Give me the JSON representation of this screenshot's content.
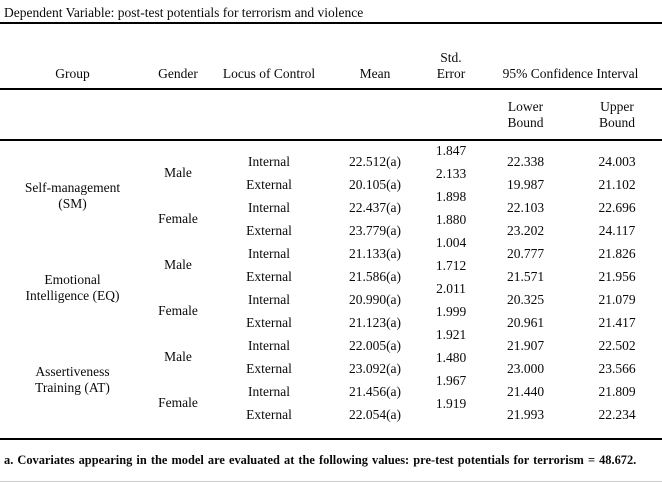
{
  "caption": "Dependent Variable: post-test potentials for terrorism and violence",
  "table": {
    "headers": {
      "group": "Group",
      "gender": "Gender",
      "locus": "Locus of Control",
      "mean": "Mean",
      "std_error": "Std.\nError",
      "ci": "95% Confidence Interval",
      "lower": "Lower\nBound",
      "upper": "Upper\nBound"
    },
    "groups": [
      {
        "name": "Self-management\n(SM)",
        "genders": [
          {
            "label": "Male",
            "rows": [
              {
                "locus": "Internal",
                "mean": "22.512(a)",
                "se": "1.847",
                "lower": "22.338",
                "upper": "24.003"
              },
              {
                "locus": "External",
                "mean": "20.105(a)",
                "se": "2.133",
                "lower": "19.987",
                "upper": "21.102"
              }
            ]
          },
          {
            "label": "Female",
            "rows": [
              {
                "locus": "Internal",
                "mean": "22.437(a)",
                "se": "1.898",
                "lower": "22.103",
                "upper": "22.696"
              },
              {
                "locus": "External",
                "mean": "23.779(a)",
                "se": "1.880",
                "lower": "23.202",
                "upper": "24.117"
              }
            ]
          }
        ]
      },
      {
        "name": "Emotional\nIntelligence (EQ)",
        "genders": [
          {
            "label": "Male",
            "rows": [
              {
                "locus": "Internal",
                "mean": "21.133(a)",
                "se": "1.004",
                "lower": "20.777",
                "upper": "21.826"
              },
              {
                "locus": "External",
                "mean": "21.586(a)",
                "se": "1.712",
                "lower": "21.571",
                "upper": "21.956"
              }
            ]
          },
          {
            "label": "Female",
            "rows": [
              {
                "locus": "Internal",
                "mean": "20.990(a)",
                "se": "2.011",
                "lower": "20.325",
                "upper": "21.079"
              },
              {
                "locus": "External",
                "mean": "21.123(a)",
                "se": "1.999",
                "lower": "20.961",
                "upper": "21.417"
              }
            ]
          }
        ]
      },
      {
        "name": "Assertiveness\nTraining (AT)",
        "genders": [
          {
            "label": "Male",
            "rows": [
              {
                "locus": "Internal",
                "mean": "22.005(a)",
                "se": "1.921",
                "lower": "21.907",
                "upper": "22.502"
              },
              {
                "locus": "External",
                "mean": "23.092(a)",
                "se": "1.480",
                "lower": "23.000",
                "upper": "23.566"
              }
            ]
          },
          {
            "label": "Female",
            "rows": [
              {
                "locus": "Internal",
                "mean": "21.456(a)",
                "se": "1.967",
                "lower": "21.440",
                "upper": "21.809"
              },
              {
                "locus": "External",
                "mean": "22.054(a)",
                "se": "1.919",
                "lower": "21.993",
                "upper": "22.234"
              }
            ]
          }
        ]
      }
    ]
  },
  "footnote": "a. Covariates appearing in the model are evaluated at the following values: pre-test potentials for terrorism = 48.672."
}
